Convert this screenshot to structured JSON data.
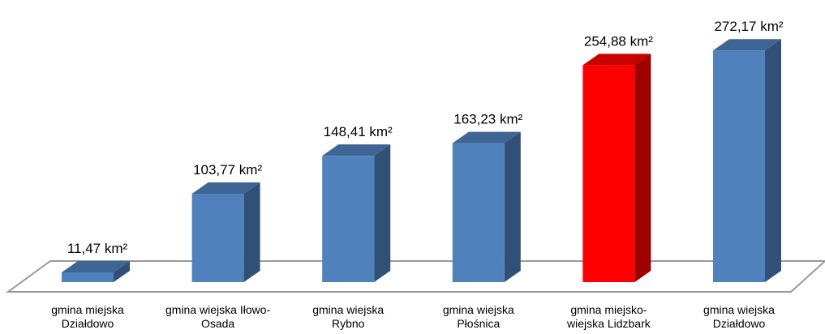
{
  "chart_data": {
    "type": "bar3d",
    "categories": [
      "gmina miejska Działdowo",
      "gmina wiejska Iłowo-Osada",
      "gmina wiejska Rybno",
      "gmina wiejska Płośnica",
      "gmina miejsko-wiejska Lidzbark",
      "gmina wiejska Działdowo"
    ],
    "values": [
      11.47,
      103.77,
      148.41,
      163.23,
      254.88,
      272.17
    ],
    "value_labels": [
      "11,47 km²",
      "103,77 km²",
      "148,41 km²",
      "163,23 km²",
      "254,88 km²",
      "272,17 km²"
    ],
    "colors": [
      "#4f81bd",
      "#4f81bd",
      "#4f81bd",
      "#4f81bd",
      "#ff0000",
      "#4f81bd"
    ]
  }
}
